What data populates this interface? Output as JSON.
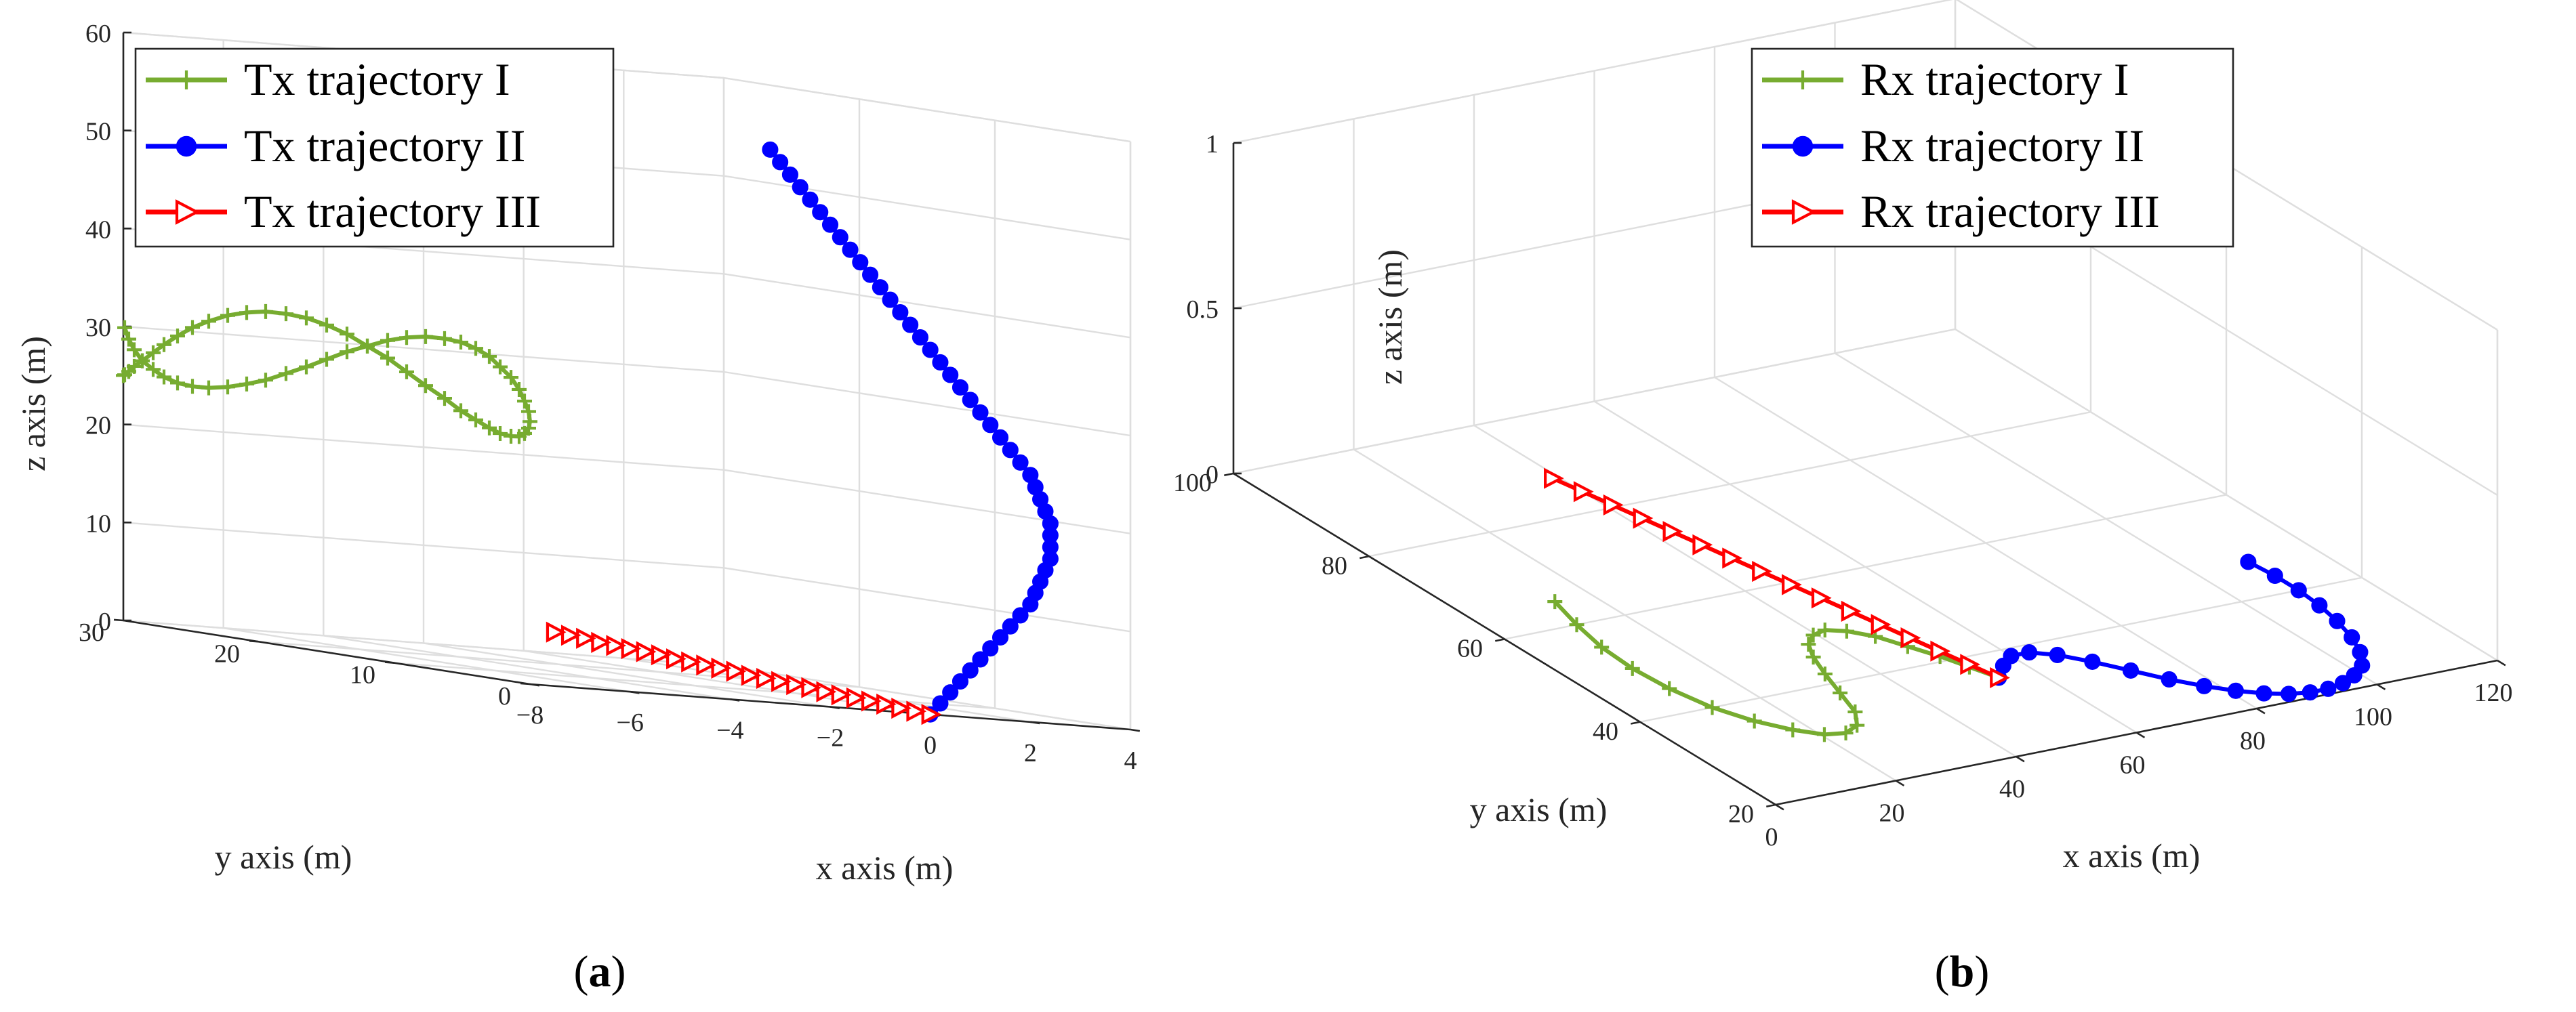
{
  "figure": {
    "captions": [
      {
        "open": "(",
        "letter": "a",
        "close": ")"
      },
      {
        "open": "(",
        "letter": "b",
        "close": ")"
      }
    ]
  },
  "colors": {
    "trajectory_I": "#77ac30",
    "trajectory_II": "#0000ff",
    "trajectory_III": "#ff0000",
    "grid": "#dedede",
    "axis": "#262626"
  },
  "chart_data": [
    {
      "type": "line3d",
      "title": "",
      "xlabel": "x axis (m)",
      "ylabel": "y axis (m)",
      "zlabel": "z axis (m)",
      "xlim": [
        -8,
        4
      ],
      "ylim": [
        0,
        30
      ],
      "zlim": [
        0,
        60
      ],
      "xticks": [
        -8,
        -6,
        -4,
        -2,
        0,
        2,
        4
      ],
      "xtick_labels": [
        "−8",
        "−6",
        "−4",
        "−2",
        "0",
        "2",
        "4"
      ],
      "yticks": [
        0,
        10,
        20,
        30
      ],
      "ytick_labels": [
        "0",
        "10",
        "20",
        "30"
      ],
      "zticks": [
        0,
        10,
        20,
        30,
        40,
        50,
        60
      ],
      "ztick_labels": [
        "0",
        "10",
        "20",
        "30",
        "40",
        "50",
        "60"
      ],
      "grid": true,
      "legend_position": "top-left",
      "series": [
        {
          "name": "Tx trajectory I",
          "color": "#77ac30",
          "marker": "plus",
          "x": [
            -8,
            -8,
            -8,
            -8,
            -8,
            -8,
            -8,
            -8,
            -8,
            -8,
            -8,
            -8,
            -8,
            -8,
            -8,
            -8,
            -8,
            -8,
            -8,
            -8,
            -8,
            -8,
            -8,
            -8,
            -8,
            -8,
            -8,
            -8,
            -8,
            -8,
            -8,
            -8,
            -8,
            -8,
            -8,
            -8,
            -8,
            -8,
            -8,
            -8,
            -8,
            -8,
            -8,
            -8,
            -8,
            -8,
            -8,
            -8,
            -8,
            -8,
            -8,
            -8,
            -8,
            -8,
            -8,
            -8,
            -8,
            -8,
            -8,
            -8
          ],
          "y": [
            30.0,
            29.9,
            29.6,
            29.2,
            28.6,
            27.8,
            27.0,
            26.0,
            24.9,
            23.7,
            22.3,
            20.9,
            19.5,
            18.0,
            16.5,
            15.0,
            13.5,
            12.0,
            10.5,
            9.1,
            7.7,
            6.3,
            5.1,
            4.0,
            3.0,
            2.2,
            1.4,
            0.8,
            0.4,
            0.1,
            0.0,
            0.1,
            0.4,
            0.8,
            1.4,
            2.2,
            3.0,
            4.0,
            5.1,
            6.3,
            7.7,
            9.1,
            10.5,
            12.0,
            13.5,
            15.0,
            16.5,
            18.0,
            19.5,
            20.9,
            22.3,
            23.7,
            24.9,
            26.0,
            27.0,
            27.8,
            28.6,
            29.2,
            29.6,
            29.9
          ],
          "z": [
            25.0,
            25.1,
            25.5,
            26.1,
            26.8,
            27.8,
            28.8,
            29.9,
            31.0,
            31.9,
            32.8,
            33.4,
            33.8,
            33.9,
            33.8,
            33.4,
            32.8,
            31.9,
            31.0,
            29.9,
            28.8,
            27.8,
            26.8,
            26.1,
            25.5,
            25.1,
            25.0,
            25.1,
            25.5,
            26.1,
            26.8,
            27.8,
            28.8,
            29.9,
            31.0,
            31.9,
            32.8,
            33.4,
            33.8,
            33.9,
            33.8,
            33.4,
            32.8,
            31.9,
            31.0,
            29.9,
            28.8,
            27.8,
            26.8,
            26.1,
            25.5,
            25.1,
            25.0,
            25.1,
            25.5,
            26.1,
            26.8,
            27.8,
            28.8,
            29.9
          ]
        },
        {
          "name": "Tx trajectory II",
          "color": "#0000ff",
          "marker": "dot",
          "x": [
            0.0,
            0.2,
            0.4,
            0.6,
            0.8,
            1.0,
            1.2,
            1.4,
            1.6,
            1.8,
            2.0,
            2.1,
            2.2,
            2.3,
            2.4,
            2.4,
            2.4,
            2.4,
            2.3,
            2.2,
            2.1,
            2.0,
            1.8,
            1.6,
            1.4,
            1.2,
            1.0,
            0.8,
            0.6,
            0.4,
            0.2,
            0.0,
            -0.2,
            -0.4,
            -0.6,
            -0.8,
            -1.0,
            -1.2,
            -1.4,
            -1.6,
            -1.8,
            -2.0,
            -2.2,
            -2.4,
            -2.6,
            -2.8,
            -3.0,
            -3.2
          ],
          "y": [
            0.0,
            0.0,
            0.0,
            0.0,
            0.0,
            0.0,
            0.0,
            0.0,
            0.0,
            0.0,
            0.0,
            0.0,
            0.0,
            0.0,
            0.0,
            0.0,
            0.0,
            0.0,
            0.0,
            0.0,
            0.0,
            0.0,
            0.0,
            0.0,
            0.0,
            0.0,
            0.0,
            0.0,
            0.0,
            0.0,
            0.0,
            0.0,
            0.0,
            0.0,
            0.0,
            0.0,
            0.0,
            0.0,
            0.0,
            0.0,
            0.0,
            0.0,
            0.0,
            0.0,
            0.0,
            0.0,
            0.0,
            0.0
          ],
          "z": [
            0.0,
            1.2,
            2.4,
            3.6,
            4.8,
            6.0,
            7.2,
            8.4,
            9.6,
            10.8,
            12.0,
            13.2,
            14.4,
            15.6,
            16.8,
            18.0,
            19.2,
            20.4,
            21.6,
            22.8,
            24.0,
            25.2,
            26.4,
            27.6,
            28.8,
            30.0,
            31.2,
            32.4,
            33.6,
            34.8,
            36.0,
            37.2,
            38.4,
            39.6,
            40.8,
            42.0,
            43.2,
            44.4,
            45.6,
            46.8,
            48.0,
            49.2,
            50.4,
            51.6,
            52.8,
            54.0,
            55.2,
            56.4
          ]
        },
        {
          "name": "Tx trajectory III",
          "color": "#ff0000",
          "marker": "triangle-right",
          "x": [
            0.0,
            -0.3,
            -0.6,
            -0.9,
            -1.2,
            -1.5,
            -1.8,
            -2.1,
            -2.4,
            -2.7,
            -3.0,
            -3.3,
            -3.6,
            -3.9,
            -4.2,
            -4.5,
            -4.8,
            -5.1,
            -5.4,
            -5.7,
            -6.0,
            -6.3,
            -6.6,
            -6.9,
            -7.2,
            -7.5
          ],
          "y": [
            0.0,
            0.0,
            0.0,
            0.0,
            0.0,
            0.0,
            0.0,
            0.0,
            0.0,
            0.0,
            0.0,
            0.0,
            0.0,
            0.0,
            0.0,
            0.0,
            0.0,
            0.0,
            0.0,
            0.0,
            0.0,
            0.0,
            0.0,
            0.0,
            0.0,
            0.0
          ],
          "z": [
            0.0,
            0.2,
            0.4,
            0.7,
            0.9,
            1.1,
            1.3,
            1.5,
            1.8,
            2.0,
            2.2,
            2.4,
            2.6,
            2.9,
            3.1,
            3.3,
            3.5,
            3.7,
            4.0,
            4.2,
            4.4,
            4.6,
            4.8,
            5.1,
            5.3,
            5.5
          ]
        }
      ]
    },
    {
      "type": "line3d",
      "title": "",
      "xlabel": "x axis (m)",
      "ylabel": "y axis (m)",
      "zlabel": "z axis (m)",
      "xlim": [
        0,
        120
      ],
      "ylim": [
        20,
        100
      ],
      "zlim": [
        0,
        1
      ],
      "xticks": [
        0,
        20,
        40,
        60,
        80,
        100,
        120
      ],
      "xtick_labels": [
        "0",
        "20",
        "40",
        "60",
        "80",
        "100",
        "120"
      ],
      "yticks": [
        20,
        40,
        60,
        80,
        100
      ],
      "ytick_labels": [
        "20",
        "40",
        "60",
        "80",
        "100"
      ],
      "zticks": [
        0,
        0.5,
        1
      ],
      "ztick_labels": [
        "0",
        "0.5",
        "1"
      ],
      "grid": true,
      "legend_position": "top-center",
      "series": [
        {
          "name": "Rx trajectory I",
          "color": "#77ac30",
          "marker": "plus",
          "x": [
            14.0,
            12.0,
            10.5,
            10.0,
            10.5,
            12.0,
            14.5,
            17.5,
            20.5,
            23.5,
            26.5,
            29.0,
            31.0,
            33.0,
            35.0,
            37.0,
            39.5,
            42.0,
            44.5,
            47.0,
            49.0,
            51.0,
            52.5,
            54.0
          ],
          "y": [
            65.0,
            60.0,
            55.0,
            50.0,
            45.0,
            40.0,
            36.0,
            33.0,
            31.0,
            30.5,
            31.5,
            34.0,
            38.0,
            42.0,
            45.5,
            48.0,
            49.5,
            50.0,
            49.0,
            47.0,
            44.0,
            41.0,
            38.0,
            35.0
          ],
          "z": [
            0,
            0,
            0,
            0,
            0,
            0,
            0,
            0,
            0,
            0,
            0,
            0,
            0,
            0,
            0,
            0,
            0,
            0,
            0,
            0,
            0,
            0,
            0,
            0
          ]
        },
        {
          "name": "Rx trajectory II",
          "color": "#0000ff",
          "marker": "dot",
          "x": [
            54.0,
            57.0,
            60.0,
            63.0,
            66.0,
            69.0,
            72.0,
            75.0,
            78.0,
            81.0,
            84.0,
            87.0,
            90.0,
            93.0,
            96.0,
            99.0,
            102.0,
            104.5,
            106.5,
            108.0,
            109.0,
            109.5,
            109.5,
            109.0
          ],
          "y": [
            35.0,
            37.0,
            38.5,
            38.5,
            37.0,
            34.5,
            31.5,
            28.5,
            26.0,
            24.0,
            22.5,
            21.5,
            21.0,
            21.0,
            21.5,
            22.5,
            24.0,
            26.5,
            29.5,
            33.0,
            36.5,
            40.0,
            43.5,
            47.0
          ],
          "z": [
            0,
            0,
            0,
            0,
            0,
            0,
            0,
            0,
            0,
            0,
            0,
            0,
            0,
            0,
            0,
            0,
            0,
            0,
            0,
            0,
            0,
            0,
            0,
            0
          ]
        },
        {
          "name": "Rx trajectory III",
          "color": "#ff0000",
          "marker": "triangle-right",
          "x": [
            54.0,
            53.0,
            52.0,
            51.0,
            50.0,
            49.0,
            48.0,
            47.0,
            46.0,
            45.0,
            44.0,
            43.0,
            42.0,
            41.0,
            40.0,
            39.0
          ],
          "y": [
            35.0,
            38.5,
            42.0,
            45.5,
            49.0,
            52.5,
            56.0,
            59.5,
            63.0,
            66.5,
            70.0,
            73.5,
            77.0,
            80.5,
            84.0,
            87.5
          ],
          "z": [
            0,
            0,
            0,
            0,
            0,
            0,
            0,
            0,
            0,
            0,
            0,
            0,
            0,
            0,
            0,
            0
          ]
        }
      ]
    }
  ]
}
